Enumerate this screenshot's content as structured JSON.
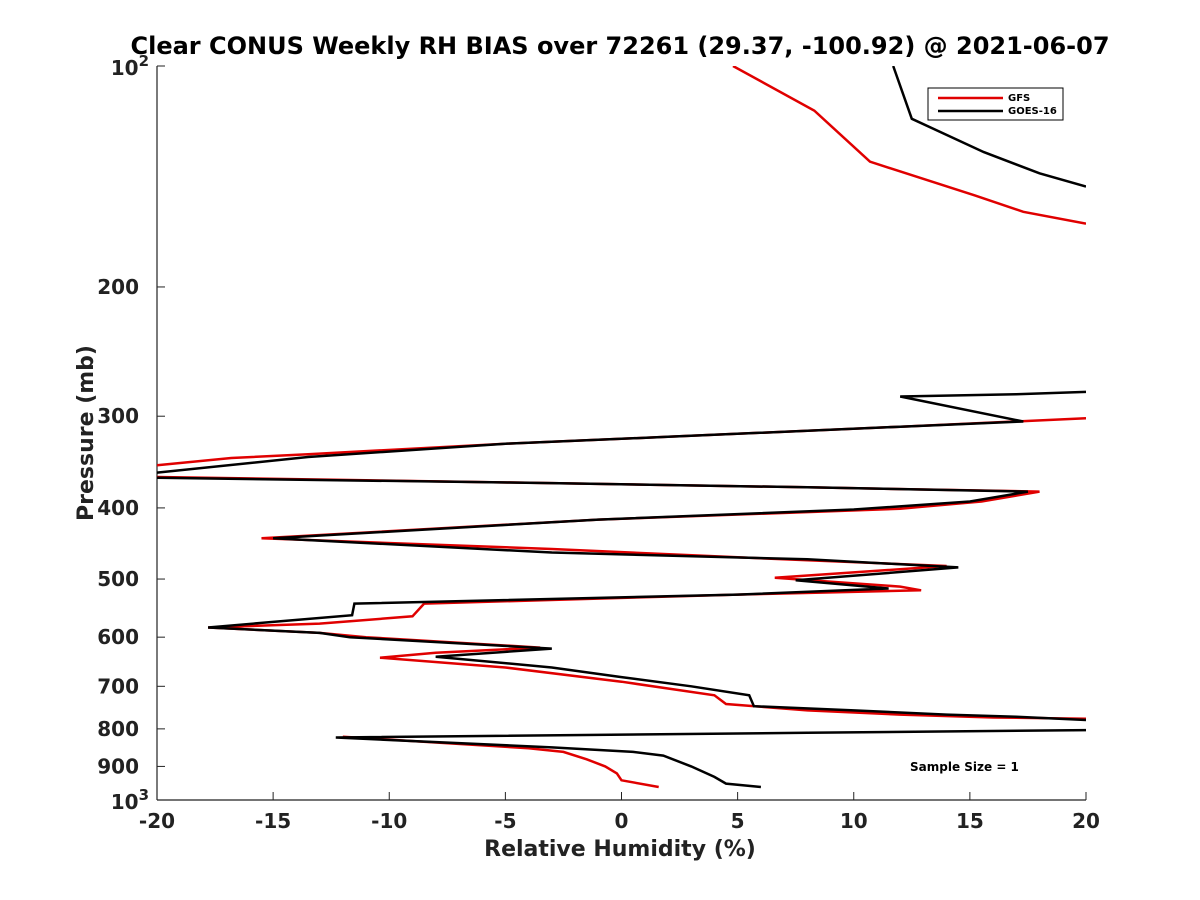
{
  "chart_data": {
    "type": "line",
    "title": "Clear CONUS Weekly RH BIAS over 72261 (29.37, -100.92) @ 2021-06-07",
    "xlabel": "Relative Humidity (%)",
    "ylabel": "Pressure (mb)",
    "xlim": [
      -20,
      20
    ],
    "ylim": [
      100,
      1000
    ],
    "y_scale": "log",
    "y_reversed": true,
    "x_ticks": [
      "-20",
      "-15",
      "-10",
      "-5",
      "0",
      "5",
      "10",
      "15",
      "20"
    ],
    "y_ticks": [
      {
        "value": 100,
        "base": "10",
        "exp": "2"
      },
      {
        "value": 200,
        "label": "200"
      },
      {
        "value": 300,
        "label": "300"
      },
      {
        "value": 400,
        "label": "400"
      },
      {
        "value": 500,
        "label": "500"
      },
      {
        "value": 600,
        "label": "600"
      },
      {
        "value": 700,
        "label": "700"
      },
      {
        "value": 800,
        "label": "800"
      },
      {
        "value": 900,
        "label": "900"
      },
      {
        "value": 1000,
        "base": "10",
        "exp": "3"
      }
    ],
    "legend_position": "top-right",
    "annotation": "Sample Size = 1",
    "series": [
      {
        "name": "GFS",
        "color": "#e00000",
        "points": [
          [
            4.8,
            100
          ],
          [
            8.3,
            115
          ],
          [
            10.7,
            135
          ],
          [
            15.2,
            150
          ],
          [
            17.3,
            158
          ],
          [
            20,
            164
          ],
          [
            null,
            null
          ],
          [
            20,
            302
          ],
          [
            12,
            310
          ],
          [
            2,
            320
          ],
          [
            -5,
            327
          ],
          [
            -13.5,
            338
          ],
          [
            -16.8,
            342
          ],
          [
            -20,
            350
          ],
          [
            null,
            null
          ],
          [
            -20,
            363
          ],
          [
            -3,
            370
          ],
          [
            8,
            375
          ],
          [
            18,
            380
          ],
          [
            15.5,
            392
          ],
          [
            12,
            401
          ],
          [
            -1,
            415
          ],
          [
            -15.5,
            440
          ],
          [
            -3,
            455
          ],
          [
            5,
            467
          ],
          [
            14,
            480
          ],
          [
            6.6,
            498
          ],
          [
            12,
            512
          ],
          [
            12.9,
            518
          ],
          [
            5,
            525
          ],
          [
            -8.5,
            540
          ],
          [
            -9,
            562
          ],
          [
            -13,
            575
          ],
          [
            -17.8,
            582
          ],
          [
            -13,
            592
          ],
          [
            -11,
            600
          ],
          [
            -3.5,
            620
          ],
          [
            -8,
            630
          ],
          [
            -10.4,
            640
          ],
          [
            -5,
            660
          ],
          [
            0,
            690
          ],
          [
            4,
            720
          ],
          [
            4.5,
            740
          ],
          [
            8,
            755
          ],
          [
            12,
            765
          ],
          [
            16,
            772
          ],
          [
            20,
            775
          ]
        ]
      },
      {
        "name": "GOES-16",
        "color": "#000000",
        "points": [
          [
            11.7,
            100
          ],
          [
            12.5,
            118
          ],
          [
            15.6,
            131
          ],
          [
            18,
            140
          ],
          [
            20,
            146
          ],
          [
            null,
            null
          ],
          [
            20,
            278
          ],
          [
            17,
            280
          ],
          [
            12,
            282
          ],
          [
            17.3,
            305
          ],
          [
            12,
            310
          ],
          [
            2,
            320
          ],
          [
            -5,
            327
          ],
          [
            -13.5,
            341
          ],
          [
            -20,
            358
          ],
          [
            null,
            null
          ],
          [
            -20,
            364
          ],
          [
            -3,
            370
          ],
          [
            8,
            375
          ],
          [
            17.5,
            380
          ],
          [
            15,
            392
          ],
          [
            10,
            402
          ],
          [
            -1,
            415
          ],
          [
            -15,
            440
          ],
          [
            -3,
            460
          ],
          [
            8,
            470
          ],
          [
            14.5,
            482
          ],
          [
            7.5,
            502
          ],
          [
            11.5,
            515
          ],
          [
            5,
            525
          ],
          [
            -11.5,
            540
          ],
          [
            -11.6,
            560
          ],
          [
            -15,
            572
          ],
          [
            -17.8,
            582
          ],
          [
            -13,
            592
          ],
          [
            -11.7,
            600
          ],
          [
            -3,
            622
          ],
          [
            -8,
            638
          ],
          [
            -3,
            660
          ],
          [
            0,
            680
          ],
          [
            3,
            700
          ],
          [
            5.5,
            720
          ],
          [
            5.7,
            745
          ],
          [
            10,
            755
          ],
          [
            14,
            765
          ],
          [
            17,
            770
          ],
          [
            20,
            778
          ],
          [
            null,
            null
          ],
          [
            20,
            803
          ],
          [
            8,
            810
          ],
          [
            -12.3,
            822
          ],
          [
            -3,
            848
          ],
          [
            0.5,
            860
          ],
          [
            1.8,
            870
          ],
          [
            3,
            900
          ],
          [
            4,
            930
          ],
          [
            4.5,
            950
          ],
          [
            6,
            960
          ]
        ]
      }
    ],
    "series_gfs_tail": [
      [
        -12,
        820
      ],
      [
        -8,
        835
      ],
      [
        -4,
        850
      ],
      [
        -2.5,
        860
      ],
      [
        -1.5,
        880
      ],
      [
        -0.7,
        900
      ],
      [
        -0.2,
        920
      ],
      [
        0,
        940
      ],
      [
        1.6,
        960
      ]
    ]
  }
}
